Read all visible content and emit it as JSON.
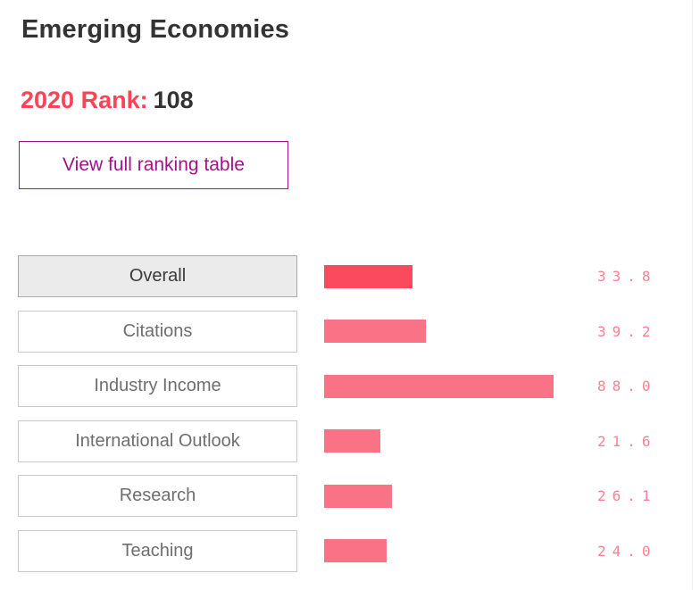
{
  "header": {
    "title": "Emerging Economies",
    "rank_label": "2020 Rank:",
    "rank_value": "108",
    "view_button_label": "View full ranking table"
  },
  "colors": {
    "title_text": "#333333",
    "rank_accent": "#fb4458",
    "button_purple": "#a3128b",
    "category_text": "#6e6e6e",
    "selected_category_bg": "#ebebeb",
    "bar_selected": "#fb4a5e",
    "bar_default": "#fa7285",
    "value_text": "#fa8093"
  },
  "chart_data": {
    "type": "bar",
    "orientation": "horizontal",
    "title": "",
    "categories": [
      "Overall",
      "Citations",
      "Industry Income",
      "International Outlook",
      "Research",
      "Teaching"
    ],
    "values": [
      33.8,
      39.2,
      88.0,
      21.6,
      26.1,
      24.0
    ],
    "value_labels": [
      "33.8",
      "39.2",
      "88.0",
      "21.6",
      "26.1",
      "24.0"
    ],
    "selected_category": "Overall",
    "xlim": [
      0,
      100
    ],
    "grid": false,
    "legend": false,
    "bar_color_selected": "#fb4a5e",
    "bar_color": "#fa7285"
  }
}
